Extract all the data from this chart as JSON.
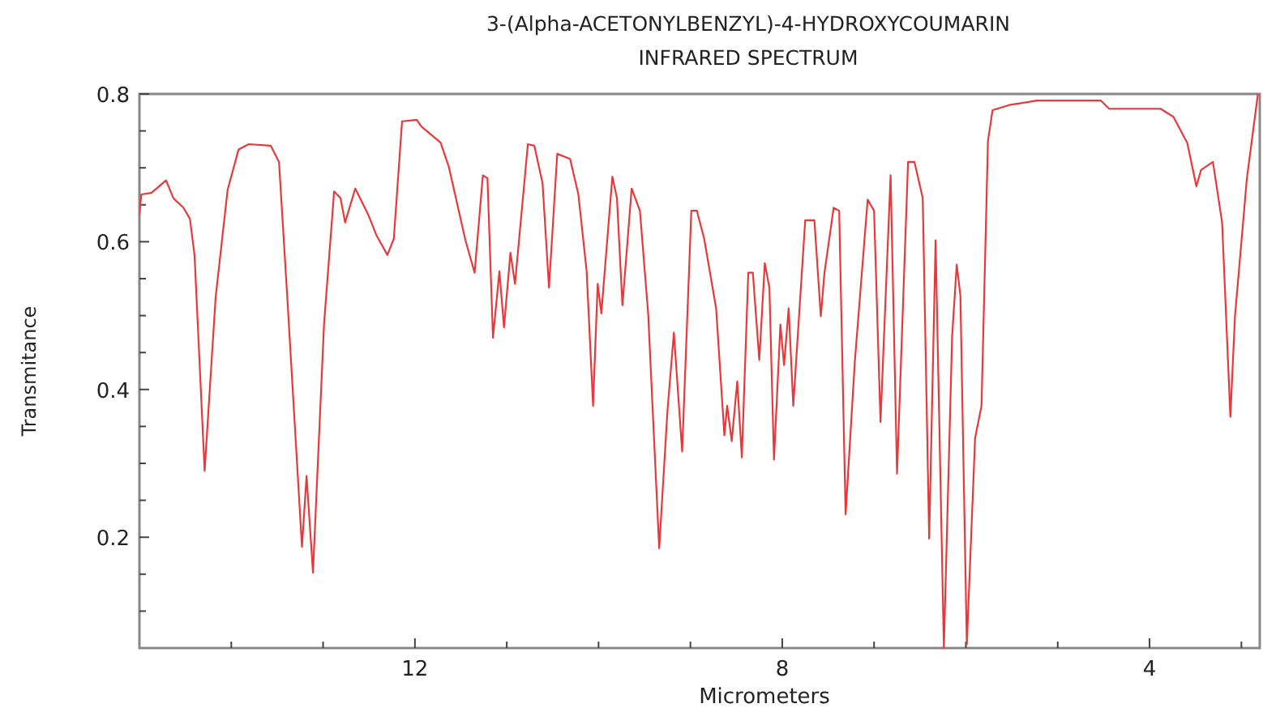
{
  "chart_data": {
    "type": "line",
    "title": "3-(Alpha-ACETONYLBENZYL)-4-HYDROXYCOUMARIN",
    "subtitle": "INFRARED SPECTRUM",
    "xlabel": "Micrometers",
    "ylabel": "Transmitance",
    "xlim": [
      15,
      2.8
    ],
    "ylim": [
      0.05,
      0.8
    ],
    "xticks": [
      {
        "value": 14,
        "label": null
      },
      {
        "value": 13,
        "label": null
      },
      12,
      {
        "value": 11,
        "label": null
      },
      {
        "value": 10,
        "label": null
      },
      {
        "value": 9,
        "label": null
      },
      8,
      {
        "value": 7,
        "label": null
      },
      {
        "value": 6,
        "label": null
      },
      {
        "value": 5,
        "label": null
      },
      4,
      {
        "value": 3,
        "label": null
      }
    ],
    "yticks": [
      {
        "value": 0.1,
        "label": null
      },
      {
        "value": 0.15,
        "label": null
      },
      0.2,
      {
        "value": 0.25,
        "label": null
      },
      {
        "value": 0.3,
        "label": null
      },
      {
        "value": 0.35,
        "label": null
      },
      0.4,
      {
        "value": 0.45,
        "label": null
      },
      {
        "value": 0.5,
        "label": null
      },
      {
        "value": 0.55,
        "label": null
      },
      0.6,
      {
        "value": 0.65,
        "label": null
      },
      {
        "value": 0.7,
        "label": null
      },
      {
        "value": 0.75,
        "label": null
      },
      0.8
    ],
    "grid": false,
    "marker": "none",
    "line_style": "solid",
    "series": [
      {
        "color": "#e8383a",
        "x": [
          15.0,
          14.98,
          14.87,
          14.71,
          14.63,
          14.52,
          14.45,
          14.4,
          14.29,
          14.17,
          14.04,
          13.92,
          13.81,
          13.57,
          13.48,
          13.39,
          13.23,
          13.18,
          13.11,
          12.99,
          12.88,
          12.81,
          12.76,
          12.65,
          12.51,
          12.42,
          12.3,
          12.23,
          12.14,
          11.98,
          11.93,
          11.72,
          11.63,
          11.45,
          11.35,
          11.26,
          11.21,
          11.15,
          11.08,
          11.03,
          10.96,
          10.91,
          10.77,
          10.7,
          10.61,
          10.54,
          10.45,
          10.31,
          10.22,
          10.13,
          10.06,
          10.01,
          9.97,
          9.85,
          9.8,
          9.74,
          9.64,
          9.55,
          9.46,
          9.34,
          9.25,
          9.18,
          9.09,
          8.99,
          8.93,
          8.85,
          8.72,
          8.63,
          8.6,
          8.55,
          8.49,
          8.44,
          8.37,
          8.32,
          8.25,
          8.19,
          8.14,
          8.09,
          8.02,
          7.98,
          7.93,
          7.88,
          7.75,
          7.65,
          7.58,
          7.54,
          7.44,
          7.38,
          7.31,
          7.21,
          7.07,
          7.0,
          6.93,
          6.82,
          6.75,
          6.63,
          6.56,
          6.47,
          6.4,
          6.33,
          6.24,
          6.15,
          6.1,
          6.06,
          5.99,
          5.9,
          5.83,
          5.76,
          5.71,
          5.53,
          5.23,
          4.53,
          4.44,
          3.88,
          3.74,
          3.59,
          3.49,
          3.44,
          3.31,
          3.21,
          3.12,
          3.07,
          2.94,
          2.82
        ],
        "values": [
          0.637,
          0.664,
          0.666,
          0.683,
          0.659,
          0.646,
          0.631,
          0.582,
          0.29,
          0.525,
          0.67,
          0.725,
          0.732,
          0.73,
          0.708,
          0.525,
          0.187,
          0.283,
          0.152,
          0.488,
          0.668,
          0.659,
          0.626,
          0.672,
          0.637,
          0.609,
          0.582,
          0.604,
          0.763,
          0.765,
          0.756,
          0.734,
          0.701,
          0.602,
          0.558,
          0.69,
          0.686,
          0.47,
          0.56,
          0.484,
          0.585,
          0.543,
          0.732,
          0.73,
          0.679,
          0.538,
          0.719,
          0.712,
          0.664,
          0.56,
          0.378,
          0.543,
          0.503,
          0.688,
          0.659,
          0.514,
          0.672,
          0.642,
          0.503,
          0.185,
          0.371,
          0.477,
          0.316,
          0.642,
          0.642,
          0.604,
          0.51,
          0.338,
          0.378,
          0.33,
          0.411,
          0.308,
          0.558,
          0.558,
          0.44,
          0.571,
          0.538,
          0.305,
          0.488,
          0.433,
          0.51,
          0.378,
          0.629,
          0.629,
          0.499,
          0.558,
          0.646,
          0.642,
          0.231,
          0.437,
          0.657,
          0.642,
          0.356,
          0.69,
          0.286,
          0.708,
          0.708,
          0.659,
          0.198,
          0.602,
          0.05,
          0.472,
          0.569,
          0.527,
          0.055,
          0.334,
          0.378,
          0.736,
          0.778,
          0.785,
          0.791,
          0.791,
          0.78,
          0.78,
          0.769,
          0.734,
          0.675,
          0.697,
          0.708,
          0.626,
          0.363,
          0.499,
          0.686,
          0.8
        ]
      }
    ]
  }
}
